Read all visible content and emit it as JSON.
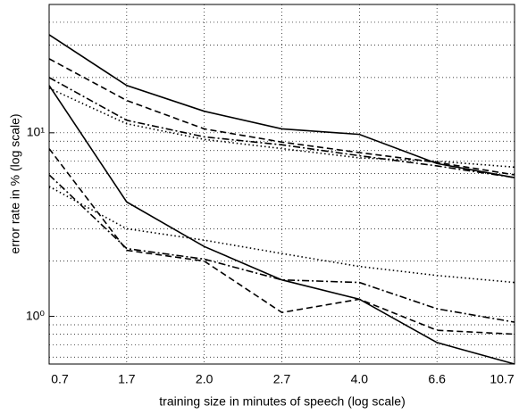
{
  "chart_data": {
    "type": "line",
    "xlabel": "training size in minutes of speech (log scale)",
    "ylabel": "error rate in % (log scale)",
    "categories": [
      "0.7",
      "1.7",
      "2.0",
      "2.7",
      "4.0",
      "6.6",
      "10.7"
    ],
    "ylog": true,
    "ylim": [
      0.55,
      50
    ],
    "yticks": [
      {
        "value": 1,
        "label": "10⁰"
      },
      {
        "value": 10,
        "label": "10¹"
      }
    ],
    "grid": true,
    "series": [
      {
        "color": "#000000",
        "dash": "solid",
        "values": [
          34.2,
          18.1,
          13.1,
          10.5,
          9.8,
          6.8,
          5.7
        ]
      },
      {
        "color": "#000000",
        "dash": "dashed",
        "values": [
          25.3,
          15.0,
          10.5,
          8.9,
          7.8,
          6.9,
          5.9
        ]
      },
      {
        "color": "#000000",
        "dash": "dashdot",
        "values": [
          20.0,
          11.7,
          9.5,
          8.6,
          7.5,
          6.6,
          5.7
        ]
      },
      {
        "color": "#000000",
        "dash": "dotted",
        "values": [
          17.5,
          11.2,
          9.2,
          8.2,
          7.3,
          7.0,
          6.5
        ]
      },
      {
        "color": "#000000",
        "dash": "solid",
        "values": [
          18.1,
          4.2,
          2.4,
          1.58,
          1.24,
          0.72,
          0.55
        ]
      },
      {
        "color": "#000000",
        "dash": "dashed",
        "values": [
          8.2,
          2.29,
          2.0,
          1.05,
          1.24,
          0.84,
          0.8
        ]
      },
      {
        "color": "#000000",
        "dash": "dashdot",
        "values": [
          5.9,
          2.34,
          2.05,
          1.58,
          1.53,
          1.1,
          0.93
        ]
      },
      {
        "color": "#000000",
        "dash": "dotted",
        "values": [
          5.1,
          3.0,
          2.6,
          2.2,
          1.87,
          1.67,
          1.53
        ]
      }
    ]
  }
}
